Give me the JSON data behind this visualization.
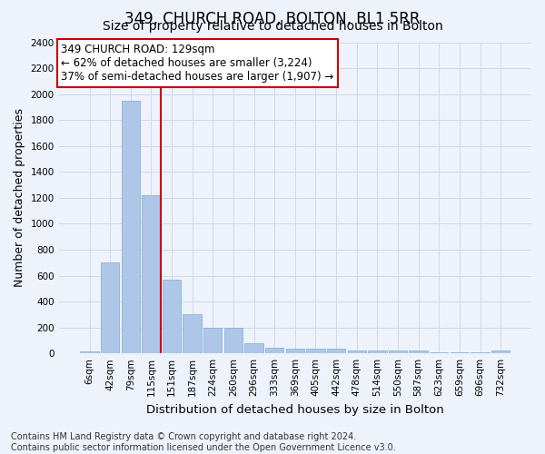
{
  "title": "349, CHURCH ROAD, BOLTON, BL1 5RR",
  "subtitle": "Size of property relative to detached houses in Bolton",
  "xlabel": "Distribution of detached houses by size in Bolton",
  "ylabel": "Number of detached properties",
  "footer_line1": "Contains HM Land Registry data © Crown copyright and database right 2024.",
  "footer_line2": "Contains public sector information licensed under the Open Government Licence v3.0.",
  "bar_labels": [
    "6sqm",
    "42sqm",
    "79sqm",
    "115sqm",
    "151sqm",
    "187sqm",
    "224sqm",
    "260sqm",
    "296sqm",
    "333sqm",
    "369sqm",
    "405sqm",
    "442sqm",
    "478sqm",
    "514sqm",
    "550sqm",
    "587sqm",
    "623sqm",
    "659sqm",
    "696sqm",
    "732sqm"
  ],
  "bar_values": [
    15,
    700,
    1950,
    1220,
    570,
    305,
    200,
    200,
    80,
    45,
    35,
    35,
    35,
    20,
    20,
    20,
    20,
    5,
    5,
    5,
    20
  ],
  "bar_color": "#aec6e8",
  "bar_edge_color": "#7aaed0",
  "grid_color": "#d0d8e8",
  "background_color": "#eef2fb",
  "red_line_x": 3.45,
  "red_line_color": "#cc0000",
  "annotation_text": "349 CHURCH ROAD: 129sqm\n← 62% of detached houses are smaller (3,224)\n37% of semi-detached houses are larger (1,907) →",
  "annotation_box_color": "#cc0000",
  "ylim": [
    0,
    2400
  ],
  "yticks": [
    0,
    200,
    400,
    600,
    800,
    1000,
    1200,
    1400,
    1600,
    1800,
    2000,
    2200,
    2400
  ],
  "title_fontsize": 12,
  "subtitle_fontsize": 10,
  "annotation_fontsize": 8.5,
  "ylabel_fontsize": 9,
  "xlabel_fontsize": 9.5,
  "tick_fontsize": 7.5,
  "footer_fontsize": 7
}
